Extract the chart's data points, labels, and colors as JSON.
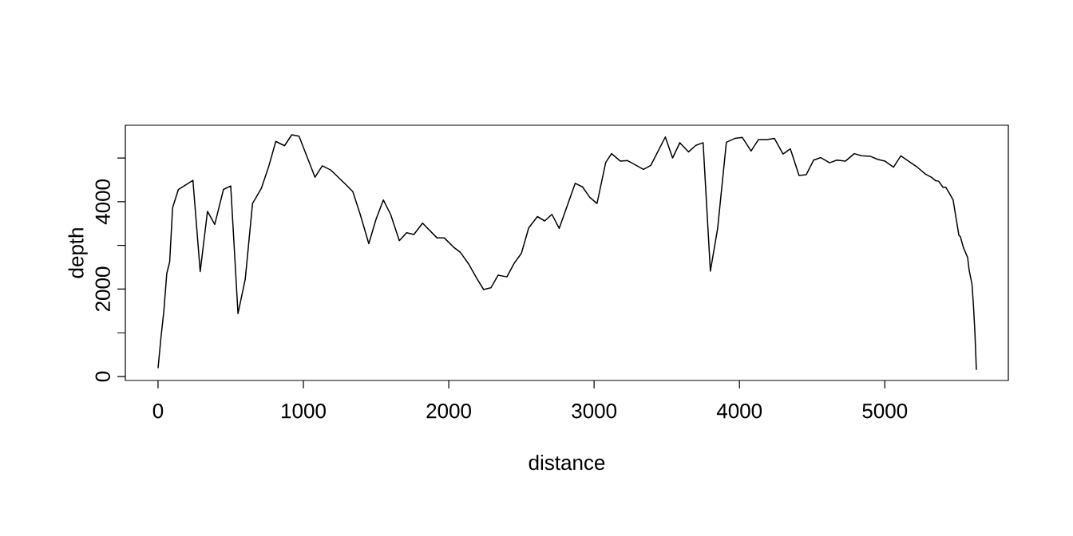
{
  "chart_data": {
    "type": "line",
    "xlabel": "distance",
    "ylabel": "depth",
    "xlim": [
      -225,
      5850
    ],
    "ylim": [
      -90,
      5750
    ],
    "xticks": [
      0,
      1000,
      2000,
      3000,
      4000,
      5000
    ],
    "yticks": [
      0,
      {
        "value": 1000,
        "label": null
      },
      2000,
      {
        "value": 3000,
        "label": null
      },
      4000,
      {
        "value": 5000,
        "label": null
      }
    ],
    "grid": false,
    "marker": "none",
    "line_style": "solid",
    "series": [
      {
        "color": "#000000",
        "x": [
          0,
          20,
          40,
          60,
          80,
          100,
          140,
          240,
          290,
          340,
          390,
          450,
          500,
          550,
          600,
          650,
          710,
          760,
          810,
          870,
          920,
          970,
          1080,
          1130,
          1190,
          1290,
          1340,
          1390,
          1450,
          1500,
          1550,
          1600,
          1660,
          1710,
          1760,
          1820,
          1920,
          1970,
          2030,
          2080,
          2140,
          2190,
          2240,
          2290,
          2340,
          2400,
          2450,
          2500,
          2550,
          2610,
          2660,
          2710,
          2760,
          2870,
          2920,
          2970,
          3020,
          3080,
          3120,
          3180,
          3230,
          3340,
          3390,
          3490,
          3540,
          3590,
          3650,
          3700,
          3750,
          3800,
          3850,
          3910,
          3970,
          4020,
          4080,
          4130,
          4190,
          4240,
          4300,
          4350,
          4410,
          4460,
          4510,
          4560,
          4620,
          4670,
          4730,
          4790,
          4840,
          4900,
          4950,
          5000,
          5060,
          5110,
          5220,
          5280,
          5320,
          5350,
          5370,
          5400,
          5420,
          5450,
          5470,
          5490,
          5510,
          5520,
          5540,
          5570,
          5580,
          5600,
          5610,
          5620,
          5630
        ],
        "values": [
          190,
          890,
          1500,
          2360,
          2620,
          3860,
          4280,
          4490,
          2400,
          3780,
          3480,
          4280,
          4360,
          1440,
          2230,
          3960,
          4300,
          4790,
          5380,
          5280,
          5530,
          5500,
          4560,
          4820,
          4720,
          4400,
          4230,
          3720,
          3040,
          3600,
          4040,
          3710,
          3110,
          3290,
          3250,
          3510,
          3170,
          3170,
          2970,
          2840,
          2560,
          2260,
          1990,
          2030,
          2320,
          2280,
          2590,
          2820,
          3400,
          3660,
          3560,
          3710,
          3390,
          4420,
          4340,
          4100,
          3960,
          4900,
          5100,
          4930,
          4940,
          4740,
          4830,
          5480,
          5000,
          5350,
          5140,
          5290,
          5350,
          2410,
          3390,
          5360,
          5450,
          5470,
          5160,
          5420,
          5420,
          5450,
          5090,
          5210,
          4600,
          4620,
          4950,
          5010,
          4890,
          4950,
          4930,
          5100,
          5050,
          5040,
          4970,
          4930,
          4790,
          5050,
          4800,
          4630,
          4560,
          4480,
          4470,
          4330,
          4330,
          4160,
          4040,
          3630,
          3230,
          3200,
          2960,
          2720,
          2440,
          2110,
          1620,
          1010,
          150
        ]
      }
    ]
  }
}
